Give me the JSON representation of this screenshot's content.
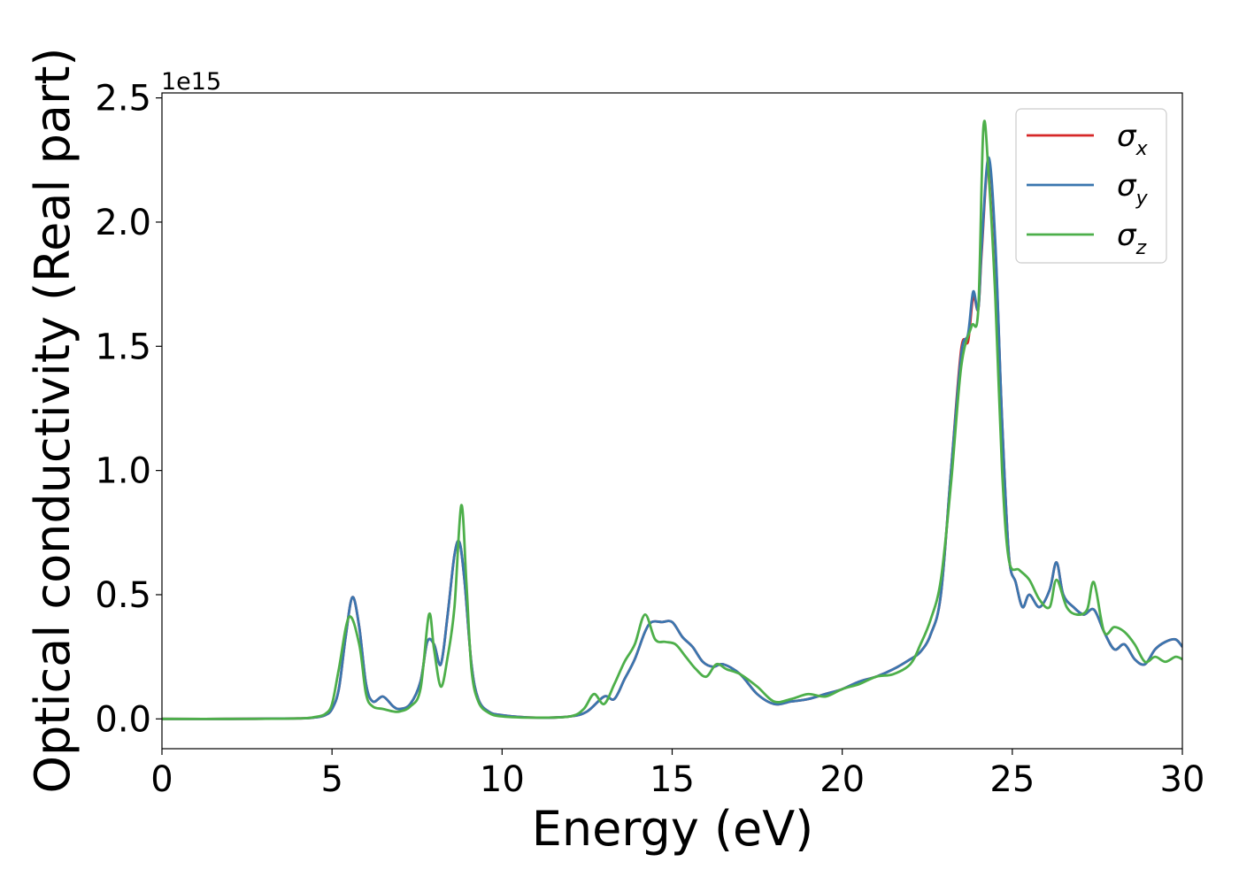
{
  "chart_data": {
    "type": "line",
    "xlabel": "Energy (eV)",
    "ylabel": "Optical conductivity (Real part)",
    "y_offset_label": "1e15",
    "xlim": [
      0,
      30
    ],
    "ylim": [
      -0.12,
      2.52
    ],
    "x_ticks": [
      0,
      5,
      10,
      15,
      20,
      25,
      30
    ],
    "x_tick_labels": [
      "0",
      "5",
      "10",
      "15",
      "20",
      "25",
      "30"
    ],
    "y_ticks": [
      0.0,
      0.5,
      1.0,
      1.5,
      2.0,
      2.5
    ],
    "y_tick_labels": [
      "0.0",
      "0.5",
      "1.0",
      "1.5",
      "2.0",
      "2.5"
    ],
    "y_scale_factor": 1000000000000000.0,
    "grid": false,
    "legend_position": "top-right",
    "series": [
      {
        "name": "σ",
        "subscript": "x",
        "color": "#d62728",
        "x": [
          0,
          2,
          4,
          4.5,
          4.8,
          5.0,
          5.2,
          5.4,
          5.6,
          5.8,
          6.0,
          6.2,
          6.5,
          6.8,
          7.0,
          7.3,
          7.6,
          7.8,
          8.0,
          8.2,
          8.4,
          8.6,
          8.75,
          8.9,
          9.1,
          9.3,
          9.6,
          10,
          11,
          12,
          12.5,
          13,
          13.3,
          13.6,
          13.9,
          14.2,
          14.4,
          14.7,
          15.0,
          15.3,
          15.6,
          15.9,
          16.2,
          16.5,
          17.0,
          17.5,
          18.0,
          18.5,
          19.0,
          19.5,
          20.0,
          20.5,
          21.0,
          21.5,
          22.0,
          22.3,
          22.6,
          22.9,
          23.2,
          23.5,
          23.7,
          23.85,
          24.0,
          24.1,
          24.3,
          24.5,
          24.7,
          24.9,
          25.1,
          25.3,
          25.5,
          25.8,
          26.1,
          26.3,
          26.5,
          26.8,
          27.1,
          27.4,
          27.7,
          28.0,
          28.3,
          28.6,
          28.9,
          29.2,
          29.5,
          29.8,
          30.0
        ],
        "y": [
          0.0,
          0.0,
          0.002,
          0.006,
          0.015,
          0.04,
          0.12,
          0.33,
          0.49,
          0.37,
          0.14,
          0.07,
          0.09,
          0.05,
          0.04,
          0.06,
          0.15,
          0.31,
          0.3,
          0.22,
          0.42,
          0.66,
          0.71,
          0.55,
          0.22,
          0.08,
          0.03,
          0.015,
          0.005,
          0.01,
          0.03,
          0.09,
          0.08,
          0.16,
          0.24,
          0.35,
          0.39,
          0.39,
          0.39,
          0.33,
          0.29,
          0.23,
          0.21,
          0.22,
          0.18,
          0.1,
          0.06,
          0.07,
          0.08,
          0.1,
          0.12,
          0.15,
          0.17,
          0.2,
          0.24,
          0.27,
          0.34,
          0.5,
          1.0,
          1.49,
          1.52,
          1.7,
          1.65,
          1.88,
          2.25,
          1.9,
          1.2,
          0.66,
          0.55,
          0.45,
          0.5,
          0.45,
          0.52,
          0.63,
          0.5,
          0.45,
          0.42,
          0.44,
          0.35,
          0.28,
          0.3,
          0.24,
          0.22,
          0.28,
          0.31,
          0.32,
          0.29
        ]
      },
      {
        "name": "σ",
        "subscript": "y",
        "color": "#3b76af",
        "x": [
          0,
          2,
          4,
          4.5,
          4.8,
          5.0,
          5.2,
          5.4,
          5.6,
          5.8,
          6.0,
          6.2,
          6.5,
          6.8,
          7.0,
          7.3,
          7.6,
          7.8,
          8.0,
          8.2,
          8.4,
          8.6,
          8.75,
          8.9,
          9.1,
          9.3,
          9.6,
          10,
          11,
          12,
          12.5,
          13,
          13.3,
          13.6,
          13.9,
          14.2,
          14.4,
          14.7,
          15.0,
          15.3,
          15.6,
          15.9,
          16.2,
          16.5,
          17.0,
          17.5,
          18.0,
          18.5,
          19.0,
          19.5,
          20.0,
          20.5,
          21.0,
          21.5,
          22.0,
          22.3,
          22.6,
          22.9,
          23.2,
          23.5,
          23.7,
          23.85,
          24.0,
          24.1,
          24.3,
          24.5,
          24.7,
          24.9,
          25.1,
          25.3,
          25.5,
          25.8,
          26.1,
          26.3,
          26.5,
          26.8,
          27.1,
          27.4,
          27.7,
          28.0,
          28.3,
          28.6,
          28.9,
          29.2,
          29.5,
          29.8,
          30.0
        ],
        "y": [
          0.0,
          0.0,
          0.002,
          0.006,
          0.015,
          0.04,
          0.12,
          0.33,
          0.49,
          0.37,
          0.14,
          0.07,
          0.09,
          0.05,
          0.04,
          0.06,
          0.15,
          0.31,
          0.3,
          0.22,
          0.42,
          0.66,
          0.71,
          0.55,
          0.22,
          0.08,
          0.03,
          0.015,
          0.005,
          0.01,
          0.03,
          0.09,
          0.08,
          0.16,
          0.24,
          0.35,
          0.39,
          0.39,
          0.39,
          0.33,
          0.29,
          0.23,
          0.21,
          0.22,
          0.18,
          0.1,
          0.06,
          0.07,
          0.08,
          0.1,
          0.12,
          0.15,
          0.17,
          0.2,
          0.24,
          0.27,
          0.34,
          0.5,
          1.0,
          1.47,
          1.55,
          1.72,
          1.65,
          1.9,
          2.26,
          1.92,
          1.2,
          0.66,
          0.55,
          0.45,
          0.5,
          0.45,
          0.52,
          0.63,
          0.5,
          0.45,
          0.42,
          0.44,
          0.35,
          0.28,
          0.3,
          0.24,
          0.22,
          0.28,
          0.31,
          0.32,
          0.29
        ]
      },
      {
        "name": "σ",
        "subscript": "z",
        "color": "#4daf4a",
        "x": [
          0,
          2,
          4,
          4.5,
          4.8,
          5.0,
          5.2,
          5.5,
          5.8,
          6.0,
          6.2,
          6.5,
          6.8,
          7.0,
          7.3,
          7.6,
          7.85,
          8.0,
          8.2,
          8.4,
          8.6,
          8.8,
          8.95,
          9.1,
          9.3,
          9.6,
          10,
          11,
          12,
          12.4,
          12.7,
          13.0,
          13.3,
          13.6,
          13.9,
          14.2,
          14.5,
          14.8,
          15.1,
          15.4,
          15.7,
          16.0,
          16.3,
          16.6,
          17.0,
          17.5,
          18.0,
          18.5,
          19.0,
          19.5,
          20.0,
          20.5,
          21.0,
          21.5,
          22.0,
          22.3,
          22.6,
          22.9,
          23.2,
          23.5,
          23.8,
          24.0,
          24.15,
          24.3,
          24.5,
          24.7,
          24.9,
          25.2,
          25.5,
          25.8,
          26.1,
          26.3,
          26.6,
          26.9,
          27.2,
          27.4,
          27.7,
          28.0,
          28.3,
          28.6,
          28.9,
          29.2,
          29.5,
          29.8,
          30.0
        ],
        "y": [
          0.0,
          0.0,
          0.002,
          0.008,
          0.02,
          0.06,
          0.2,
          0.41,
          0.3,
          0.1,
          0.05,
          0.04,
          0.03,
          0.03,
          0.05,
          0.12,
          0.42,
          0.28,
          0.13,
          0.25,
          0.45,
          0.86,
          0.55,
          0.2,
          0.07,
          0.025,
          0.01,
          0.005,
          0.01,
          0.04,
          0.1,
          0.06,
          0.14,
          0.23,
          0.3,
          0.42,
          0.32,
          0.31,
          0.3,
          0.25,
          0.2,
          0.17,
          0.22,
          0.2,
          0.18,
          0.13,
          0.07,
          0.08,
          0.1,
          0.09,
          0.12,
          0.14,
          0.17,
          0.18,
          0.22,
          0.3,
          0.4,
          0.56,
          0.95,
          1.42,
          1.58,
          1.65,
          2.38,
          2.2,
          1.7,
          1.0,
          0.64,
          0.6,
          0.56,
          0.48,
          0.45,
          0.56,
          0.45,
          0.42,
          0.44,
          0.55,
          0.35,
          0.37,
          0.35,
          0.3,
          0.23,
          0.25,
          0.23,
          0.25,
          0.24
        ]
      }
    ]
  }
}
